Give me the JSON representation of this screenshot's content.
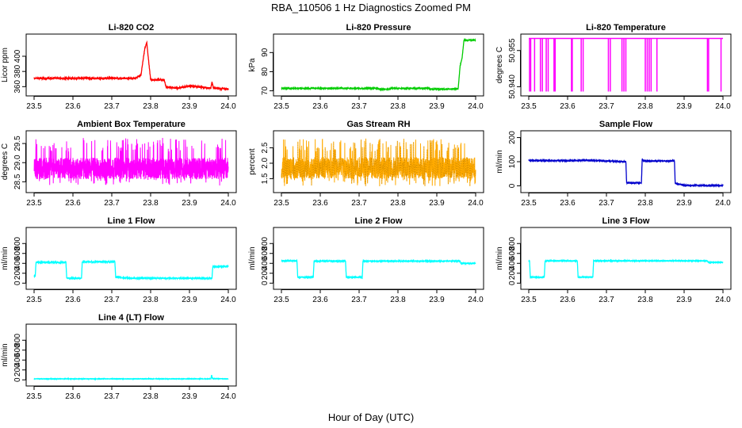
{
  "figure": {
    "title": "RBA_110506  1 Hz Diagnostics Zoomed PM",
    "xlabel": "Hour of Day (UTC)"
  },
  "chart_data": [
    {
      "type": "line",
      "title": "Li-820 CO2",
      "ylabel": "Licor ppm",
      "color": "#ff0000",
      "xlim": [
        23.5,
        24.0
      ],
      "ylim": [
        352,
        425
      ],
      "xticks": [
        23.5,
        23.6,
        23.7,
        23.8,
        23.9,
        24.0
      ],
      "yticks": [
        360,
        380,
        400
      ],
      "noise": 1.2,
      "series": [
        {
          "x": [
            23.5,
            23.6,
            23.7,
            23.76,
            23.775,
            23.785,
            23.79,
            23.8,
            23.835,
            23.84,
            23.87,
            23.9,
            23.955,
            23.958,
            23.962,
            24.0
          ],
          "y": [
            371,
            371,
            371,
            371,
            375,
            410,
            418,
            369,
            369,
            359,
            358,
            361,
            358,
            366,
            358,
            357
          ]
        }
      ]
    },
    {
      "type": "line",
      "title": "Li-820 Pressure",
      "ylabel": "kPa",
      "color": "#00cc00",
      "xlim": [
        23.5,
        24.0
      ],
      "ylim": [
        69,
        98
      ],
      "xticks": [
        23.5,
        23.6,
        23.7,
        23.8,
        23.9,
        24.0
      ],
      "yticks": [
        70,
        80,
        90
      ],
      "noise": 0.2,
      "series": [
        {
          "x": [
            23.5,
            23.75,
            23.751,
            23.78,
            23.781,
            23.88,
            23.881,
            23.955,
            23.96,
            23.965,
            23.97,
            24.0
          ],
          "y": [
            71.3,
            71.3,
            70.8,
            70.8,
            71.3,
            71.3,
            70.9,
            71.0,
            83,
            87,
            96.5,
            96.5
          ]
        }
      ]
    },
    {
      "type": "line",
      "title": "Li-820 Temperature",
      "ylabel": "degrees C",
      "color": "#ff00ff",
      "xlim": [
        23.5,
        24.0
      ],
      "ylim": [
        50.9375,
        50.9605
      ],
      "xticks": [
        23.5,
        23.6,
        23.7,
        23.8,
        23.9,
        24.0
      ],
      "yticks": [
        50.94,
        50.955
      ],
      "ytick_labels": [
        "50.940",
        "50.955"
      ],
      "series": [
        {
          "x": [
            23.5,
            24.0
          ],
          "y": [
            50.96,
            50.96
          ]
        }
      ],
      "drops": [
        23.502,
        23.505,
        23.515,
        23.53,
        23.535,
        23.545,
        23.55,
        23.565,
        23.568,
        23.61,
        23.612,
        23.635,
        23.64,
        23.705,
        23.71,
        23.74,
        23.745,
        23.75,
        23.8,
        23.805,
        23.81,
        23.815,
        23.83,
        23.96,
        23.963,
        23.995
      ],
      "drop_to": 50.938
    },
    {
      "type": "line",
      "title": "Ambient Box Temperature",
      "ylabel": "degrees C",
      "color": "#ff00ff",
      "xlim": [
        23.5,
        24.0
      ],
      "ylim": [
        28.3,
        29.75
      ],
      "xticks": [
        23.5,
        23.6,
        23.7,
        23.8,
        23.9,
        24.0
      ],
      "yticks": [
        28.5,
        29.0,
        29.5
      ],
      "ytick_labels": [
        "28.5",
        "29.0",
        "29.5"
      ],
      "noise_center": 28.85,
      "noise_range": [
        28.4,
        29.65
      ]
    },
    {
      "type": "line",
      "title": "Gas Stream RH",
      "ylabel": "percent",
      "color": "#ffaa00",
      "color2": "#cc8800",
      "xlim": [
        23.5,
        24.0
      ],
      "ylim": [
        1.15,
        2.95
      ],
      "xticks": [
        23.5,
        23.6,
        23.7,
        23.8,
        23.9,
        24.0
      ],
      "yticks": [
        1.5,
        2.0,
        2.5
      ],
      "ytick_labels": [
        "1.5",
        "2.0",
        "2.5"
      ],
      "noise_center": 1.85,
      "noise_range": [
        1.25,
        2.8
      ]
    },
    {
      "type": "line",
      "title": "Sample Flow",
      "ylabel": "ml/min",
      "color": "#0000cc",
      "xlim": [
        23.5,
        24.0
      ],
      "ylim": [
        -15,
        215
      ],
      "xticks": [
        23.5,
        23.6,
        23.7,
        23.8,
        23.9,
        24.0
      ],
      "yticks": [
        0,
        100,
        200
      ],
      "noise": 1.5,
      "series": [
        {
          "x": [
            23.5,
            23.6,
            23.65,
            23.75,
            23.752,
            23.79,
            23.792,
            23.795,
            23.875,
            23.877,
            23.9,
            24.0
          ],
          "y": [
            105,
            104,
            106,
            100,
            12,
            12,
            110,
            103,
            103,
            10,
            2,
            1
          ]
        }
      ]
    },
    {
      "type": "line",
      "title": "Line 1 Flow",
      "ylabel": "ml/min",
      "color": "#00ffff",
      "xlim": [
        23.5,
        24.0
      ],
      "ylim": [
        -60,
        1060
      ],
      "xticks": [
        23.5,
        23.6,
        23.7,
        23.8,
        23.9,
        24.0
      ],
      "yticks": [
        0,
        200,
        400,
        600,
        800
      ],
      "noise": 10,
      "series": [
        {
          "x": [
            23.5,
            23.503,
            23.505,
            23.582,
            23.584,
            23.622,
            23.624,
            23.708,
            23.71,
            23.75,
            23.958,
            23.96,
            24.0
          ],
          "y": [
            150,
            150,
            420,
            420,
            100,
            100,
            430,
            430,
            120,
            100,
            100,
            330,
            340
          ]
        }
      ]
    },
    {
      "type": "line",
      "title": "Line 2 Flow",
      "ylabel": "ml/min",
      "color": "#00ffff",
      "xlim": [
        23.5,
        24.0
      ],
      "ylim": [
        -60,
        1060
      ],
      "xticks": [
        23.5,
        23.6,
        23.7,
        23.8,
        23.9,
        24.0
      ],
      "yticks": [
        0,
        200,
        400,
        600,
        800
      ],
      "noise": 6,
      "series": [
        {
          "x": [
            23.5,
            23.54,
            23.542,
            23.582,
            23.584,
            23.665,
            23.667,
            23.708,
            23.71,
            23.96,
            23.962,
            24.0
          ],
          "y": [
            450,
            450,
            120,
            120,
            445,
            445,
            120,
            120,
            445,
            445,
            400,
            400
          ]
        }
      ]
    },
    {
      "type": "line",
      "title": "Line 3 Flow",
      "ylabel": "ml/min",
      "color": "#00ffff",
      "xlim": [
        23.5,
        24.0
      ],
      "ylim": [
        -60,
        1060
      ],
      "xticks": [
        23.5,
        23.6,
        23.7,
        23.8,
        23.9,
        24.0
      ],
      "yticks": [
        0,
        200,
        400,
        600,
        800
      ],
      "noise": 5,
      "series": [
        {
          "x": [
            23.5,
            23.502,
            23.504,
            23.54,
            23.542,
            23.625,
            23.627,
            23.665,
            23.667,
            23.96,
            23.962,
            24.0
          ],
          "y": [
            450,
            450,
            120,
            120,
            450,
            450,
            120,
            120,
            450,
            450,
            420,
            420
          ]
        }
      ]
    },
    {
      "type": "line",
      "title": "Line 4 (LT) Flow",
      "ylabel": "ml/min",
      "color": "#00ffff",
      "xlim": [
        23.5,
        24.0
      ],
      "ylim": [
        -60,
        1060
      ],
      "xticks": [
        23.5,
        23.6,
        23.7,
        23.8,
        23.9,
        24.0
      ],
      "yticks": [
        0,
        200,
        400,
        600,
        800
      ],
      "noise": 3,
      "series": [
        {
          "x": [
            23.5,
            23.955,
            23.957,
            23.959,
            24.0
          ],
          "y": [
            20,
            20,
            100,
            25,
            20
          ]
        }
      ]
    }
  ]
}
